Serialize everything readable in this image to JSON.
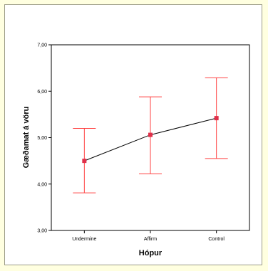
{
  "chart_data": {
    "type": "line",
    "title": "",
    "xlabel": "Hópur",
    "ylabel": "Gæðamat á vöru",
    "categories": [
      "Undermine",
      "Affirm",
      "Control"
    ],
    "ylim": [
      3.0,
      7.0
    ],
    "yticks": [
      "3,00",
      "4,00",
      "5,00",
      "6,00",
      "7,00"
    ],
    "series": [
      {
        "mean": [
          4.5,
          5.06,
          5.42
        ],
        "ci_lower": [
          3.81,
          4.22,
          4.55
        ],
        "ci_upper": [
          5.2,
          5.88,
          6.29
        ]
      }
    ],
    "colors": {
      "errorbar": "#ff4040",
      "marker": "#e0304a",
      "line": "#000000",
      "background": "#ffffe0"
    }
  }
}
